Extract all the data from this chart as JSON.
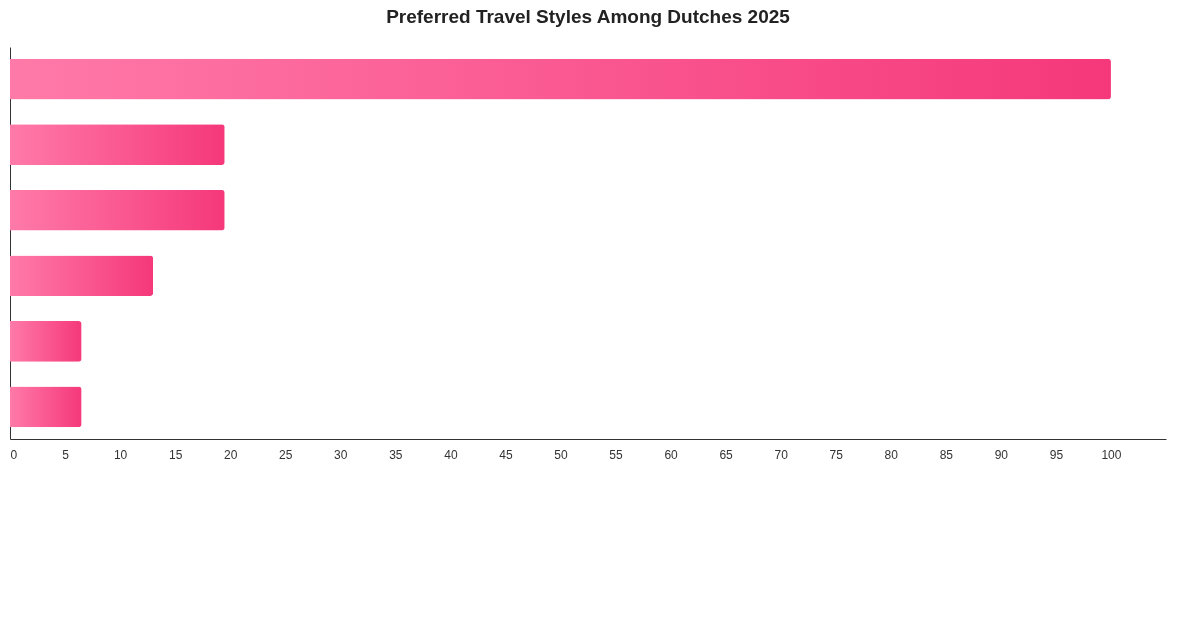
{
  "chart_data": {
    "type": "bar",
    "orientation": "horizontal",
    "title": "Preferred Travel Styles Among Dutches 2025",
    "categories": [
      null,
      null,
      null,
      null,
      null,
      null
    ],
    "values": [
      100,
      19.5,
      19.5,
      13,
      6.5,
      6.5
    ],
    "color": "#f5387a",
    "xlim": [
      0,
      105
    ],
    "xticks": [
      0,
      5,
      10,
      15,
      20,
      25,
      30,
      35,
      40,
      45,
      50,
      55,
      60,
      65,
      70,
      75,
      80,
      85,
      90,
      95,
      100
    ],
    "tick_labels": "x",
    "grid": false
  }
}
